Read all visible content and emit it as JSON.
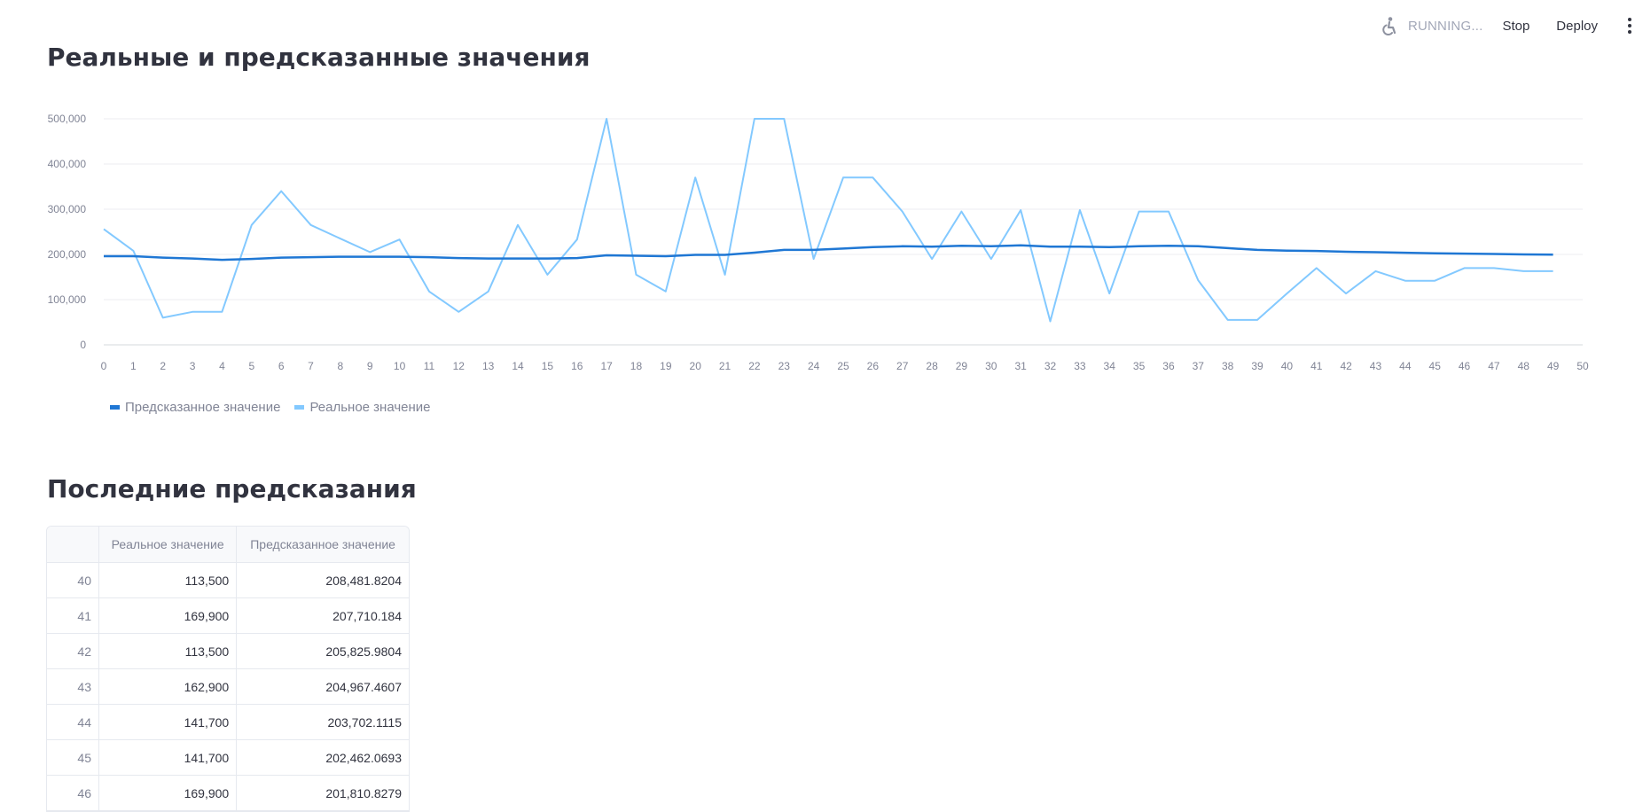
{
  "toolbar": {
    "status": "RUNNING...",
    "stop_label": "Stop",
    "deploy_label": "Deploy",
    "status_icon": "running-person-icon",
    "menu_icon": "kebab-menu-icon"
  },
  "chart_section": {
    "title": "Реальные и предсказанные значения"
  },
  "chart_data": {
    "type": "line",
    "title": "",
    "xlabel": "",
    "ylabel": "",
    "x": [
      0,
      1,
      2,
      3,
      4,
      5,
      6,
      7,
      8,
      9,
      10,
      11,
      12,
      13,
      14,
      15,
      16,
      17,
      18,
      19,
      20,
      21,
      22,
      23,
      24,
      25,
      26,
      27,
      28,
      29,
      30,
      31,
      32,
      33,
      34,
      35,
      36,
      37,
      38,
      39,
      40,
      41,
      42,
      43,
      44,
      45,
      46,
      47,
      48,
      49
    ],
    "xlim": [
      0,
      50
    ],
    "ylim": [
      0,
      500000
    ],
    "xticks": [
      0,
      1,
      2,
      3,
      4,
      5,
      6,
      7,
      8,
      9,
      10,
      11,
      12,
      13,
      14,
      15,
      16,
      17,
      18,
      19,
      20,
      21,
      22,
      23,
      24,
      25,
      26,
      27,
      28,
      29,
      30,
      31,
      32,
      33,
      34,
      35,
      36,
      37,
      38,
      39,
      40,
      41,
      42,
      43,
      44,
      45,
      46,
      47,
      48,
      49,
      50
    ],
    "yticks": [
      0,
      100000,
      200000,
      300000,
      400000,
      500000
    ],
    "ytick_labels": [
      "0",
      "100,000",
      "200,000",
      "300,000",
      "400,000",
      "500,000"
    ],
    "grid": true,
    "legend": "bottom-left",
    "series": [
      {
        "name": "Предсказанное значение",
        "color": "#1f77d4",
        "values": [
          196000,
          196000,
          193000,
          191000,
          188000,
          190000,
          193000,
          194000,
          195000,
          195000,
          195000,
          194000,
          192000,
          191000,
          191000,
          191000,
          192000,
          198000,
          197000,
          196000,
          199000,
          199000,
          204000,
          210000,
          210000,
          213000,
          216000,
          218000,
          217000,
          219000,
          218000,
          220000,
          217000,
          217000,
          216000,
          218000,
          219000,
          218000,
          214000,
          210000,
          208481.8204,
          207710.184,
          205825.9804,
          204967.4607,
          203702.1115,
          202462.0693,
          201810.8279,
          201000,
          200000,
          199500
        ]
      },
      {
        "name": "Реальное значение",
        "color": "#83c9ff",
        "values": [
          256000,
          208000,
          60000,
          73000,
          73000,
          265000,
          340000,
          265000,
          235000,
          205000,
          233000,
          118000,
          73000,
          118000,
          265000,
          155000,
          233000,
          500000,
          155000,
          118000,
          370000,
          155000,
          500000,
          500000,
          190000,
          370000,
          370000,
          295000,
          190000,
          295000,
          190000,
          298000,
          52000,
          298000,
          113500,
          295000,
          295000,
          143000,
          55000,
          55000,
          113500,
          169900,
          113500,
          162900,
          141700,
          141700,
          169900,
          169900,
          163000,
          163000
        ]
      }
    ]
  },
  "table_section": {
    "title": "Последние предсказания",
    "headers": [
      "",
      "Реальное значение",
      "Предсказанное значение"
    ],
    "rows": [
      [
        "40",
        "113,500",
        "208,481.8204"
      ],
      [
        "41",
        "169,900",
        "207,710.184"
      ],
      [
        "42",
        "113,500",
        "205,825.9804"
      ],
      [
        "43",
        "162,900",
        "204,967.4607"
      ],
      [
        "44",
        "141,700",
        "203,702.1115"
      ],
      [
        "45",
        "141,700",
        "202,462.0693"
      ],
      [
        "46",
        "169,900",
        "201,810.8279"
      ]
    ]
  }
}
